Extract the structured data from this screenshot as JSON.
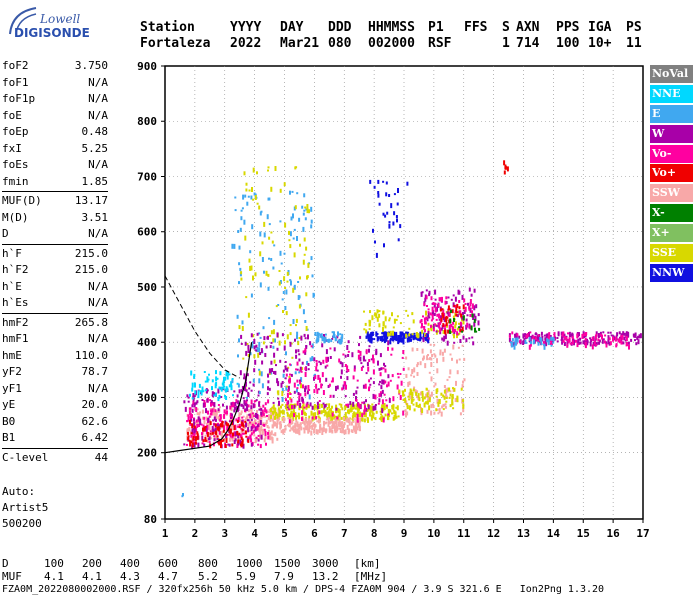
{
  "logo": {
    "line1": "Lowell",
    "line2": "DIGISONDE"
  },
  "header": {
    "row1": [
      "Station",
      "YYYY",
      "DAY",
      "DDD",
      "HHMMSS",
      "P1",
      "FFS",
      "S",
      "AXN",
      "PPS",
      "IGA",
      "PS"
    ],
    "row2": [
      "Fortaleza",
      "2022",
      "Mar21",
      "080",
      "002000",
      "RSF",
      "",
      "1",
      "714",
      "100",
      "10+",
      "11"
    ]
  },
  "params": [
    [
      {
        "k": "foF2",
        "v": "3.750"
      },
      {
        "k": "foF1",
        "v": "N/A"
      },
      {
        "k": "foF1p",
        "v": "N/A"
      },
      {
        "k": "foE",
        "v": "N/A"
      },
      {
        "k": "foEp",
        "v": "0.48"
      },
      {
        "k": "fxI",
        "v": "5.25"
      },
      {
        "k": "foEs",
        "v": "N/A"
      },
      {
        "k": "fmin",
        "v": "1.85"
      }
    ],
    [
      {
        "k": "MUF(D)",
        "v": "13.17"
      },
      {
        "k": "M(D)",
        "v": "3.51"
      },
      {
        "k": "D",
        "v": "N/A"
      }
    ],
    [
      {
        "k": "h`F",
        "v": "215.0"
      },
      {
        "k": "h`F2",
        "v": "215.0"
      },
      {
        "k": "h`E",
        "v": "N/A"
      },
      {
        "k": "h`Es",
        "v": "N/A"
      }
    ],
    [
      {
        "k": "hmF2",
        "v": "265.8"
      },
      {
        "k": "hmF1",
        "v": "N/A"
      },
      {
        "k": "hmE",
        "v": "110.0"
      },
      {
        "k": "yF2",
        "v": "78.7"
      },
      {
        "k": "yF1",
        "v": "N/A"
      },
      {
        "k": "yE",
        "v": "20.0"
      },
      {
        "k": "B0",
        "v": "62.6"
      },
      {
        "k": "B1",
        "v": "6.42"
      }
    ],
    [
      {
        "k": "C-level",
        "v": "44"
      }
    ]
  ],
  "auto": [
    "Auto:",
    "Artist5",
    "500200"
  ],
  "legend": [
    {
      "label": "NoVal",
      "color": "#808080"
    },
    {
      "label": "NNE",
      "color": "#00d8ff"
    },
    {
      "label": "E",
      "color": "#40a8f0"
    },
    {
      "label": "W",
      "color": "#a800a8"
    },
    {
      "label": "Vo-",
      "color": "#ff00a0"
    },
    {
      "label": "Vo+",
      "color": "#f00000"
    },
    {
      "label": "SSW",
      "color": "#f8a8a8"
    },
    {
      "label": "X-",
      "color": "#008000"
    },
    {
      "label": "X+",
      "color": "#80c060"
    },
    {
      "label": "SSE",
      "color": "#d8d800"
    },
    {
      "label": "NNW",
      "color": "#1010e0"
    }
  ],
  "footer": {
    "d_label": "D",
    "d_values": [
      "100",
      "200",
      "400",
      "600",
      "800",
      "1000",
      "1500",
      "3000",
      "[km]"
    ],
    "muf_label": "MUF",
    "muf_values": [
      "4.1",
      "4.1",
      "4.3",
      "4.7",
      "5.2",
      "5.9",
      "7.9",
      "13.2",
      "[MHz]"
    ],
    "line3": "FZA0M_2022080002000.RSF / 320fx256h 50 kHz 5.0 km / DPS-4 FZA0M 904 / 3.9 S 321.6 E   Ion2Png 1.3.20"
  },
  "chart_data": {
    "type": "scatter",
    "xlabel": "",
    "ylabel": "",
    "xlim": [
      1,
      17
    ],
    "ylim": [
      80,
      900
    ],
    "xticks": [
      1,
      2,
      3,
      4,
      5,
      6,
      7,
      8,
      9,
      10,
      11,
      12,
      13,
      14,
      15,
      16,
      17
    ],
    "yticks": [
      80,
      200,
      300,
      400,
      500,
      600,
      700,
      800,
      900
    ],
    "grid": "dotted",
    "legend_position": "right",
    "clusters": [
      {
        "series": "SSW",
        "x": [
          1.7,
          4.8
        ],
        "y": [
          225,
          285
        ],
        "n": 260
      },
      {
        "series": "Vo-",
        "x": [
          1.7,
          4.5
        ],
        "y": [
          215,
          300
        ],
        "n": 160
      },
      {
        "series": "W",
        "x": [
          1.6,
          4.2
        ],
        "y": [
          215,
          320
        ],
        "n": 150
      },
      {
        "series": "Vo+",
        "x": [
          1.7,
          3.8
        ],
        "y": [
          215,
          260
        ],
        "n": 80
      },
      {
        "series": "NNE",
        "x": [
          1.8,
          3.4
        ],
        "y": [
          300,
          350
        ],
        "n": 60
      },
      {
        "series": "E",
        "x": [
          3.2,
          6.0
        ],
        "y": [
          300,
          680
        ],
        "n": 140
      },
      {
        "series": "SSE",
        "x": [
          4.5,
          8.8
        ],
        "y": [
          262,
          290
        ],
        "n": 260
      },
      {
        "series": "SSE",
        "x": [
          3.4,
          5.8
        ],
        "y": [
          300,
          720
        ],
        "n": 110
      },
      {
        "series": "SSW",
        "x": [
          4.8,
          7.5
        ],
        "y": [
          240,
          265
        ],
        "n": 200
      },
      {
        "series": "W",
        "x": [
          3.5,
          8.5
        ],
        "y": [
          280,
          420
        ],
        "n": 220
      },
      {
        "series": "Vo-",
        "x": [
          5.0,
          9.0
        ],
        "y": [
          260,
          400
        ],
        "n": 140
      },
      {
        "series": "E",
        "x": [
          6.0,
          6.9
        ],
        "y": [
          400,
          420
        ],
        "n": 40
      },
      {
        "series": "NNW",
        "x": [
          7.7,
          9.8
        ],
        "y": [
          405,
          420
        ],
        "n": 140
      },
      {
        "series": "SSE",
        "x": [
          7.6,
          11.0
        ],
        "y": [
          415,
          460
        ],
        "n": 90
      },
      {
        "series": "W",
        "x": [
          9.5,
          11.5
        ],
        "y": [
          400,
          500
        ],
        "n": 100
      },
      {
        "series": "Vo-",
        "x": [
          9.5,
          11.3
        ],
        "y": [
          420,
          490
        ],
        "n": 80
      },
      {
        "series": "Vo+",
        "x": [
          10.2,
          11.0
        ],
        "y": [
          420,
          470
        ],
        "n": 30
      },
      {
        "series": "SSW",
        "x": [
          9.0,
          11.0
        ],
        "y": [
          270,
          400
        ],
        "n": 110
      },
      {
        "series": "SSE",
        "x": [
          8.8,
          11.0
        ],
        "y": [
          280,
          320
        ],
        "n": 80
      },
      {
        "series": "NNW",
        "x": [
          7.8,
          9.1
        ],
        "y": [
          560,
          700
        ],
        "n": 30
      },
      {
        "series": "W",
        "x": [
          12.5,
          16.9
        ],
        "y": [
          400,
          420
        ],
        "n": 160
      },
      {
        "series": "Vo-",
        "x": [
          12.5,
          16.5
        ],
        "y": [
          395,
          420
        ],
        "n": 80
      },
      {
        "series": "E",
        "x": [
          12.5,
          14.0
        ],
        "y": [
          395,
          410
        ],
        "n": 30
      },
      {
        "series": "Vo+",
        "x": [
          12.3,
          12.6
        ],
        "y": [
          700,
          730
        ],
        "n": 6
      },
      {
        "series": "X-",
        "x": [
          10.5,
          11.5
        ],
        "y": [
          420,
          460
        ],
        "n": 15
      },
      {
        "series": "E",
        "x": [
          1.5,
          1.6
        ],
        "y": [
          120,
          130
        ],
        "n": 2
      }
    ],
    "trace": {
      "x": [
        1.0,
        1.5,
        2.0,
        2.5,
        2.9,
        3.1,
        3.3,
        3.5,
        3.7,
        3.9
      ],
      "y": [
        200,
        204,
        208,
        212,
        225,
        240,
        262,
        290,
        330,
        400
      ]
    },
    "muf_curve": {
      "x": [
        1.0,
        1.5,
        2.0,
        2.5,
        3.0,
        3.5
      ],
      "y": [
        520,
        470,
        420,
        380,
        350,
        335
      ]
    }
  }
}
